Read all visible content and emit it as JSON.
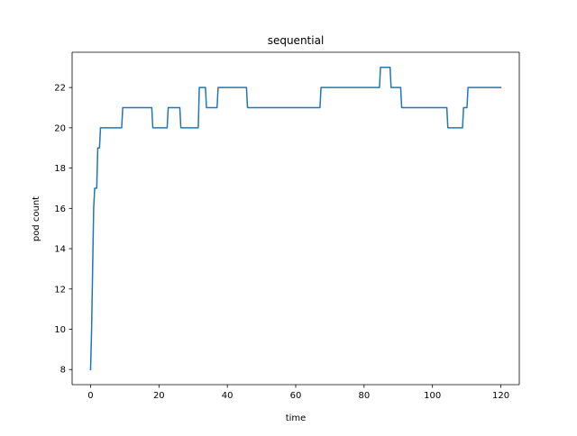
{
  "chart_data": {
    "type": "line",
    "title": "sequential",
    "xlabel": "time",
    "ylabel": "pod count",
    "xlim": [
      -5.4,
      125.4
    ],
    "ylim": [
      7.25,
      23.75
    ],
    "xticks": [
      0,
      20,
      40,
      60,
      80,
      100,
      120
    ],
    "yticks": [
      8,
      10,
      12,
      14,
      16,
      18,
      20,
      22
    ],
    "grid": false,
    "legend": "none",
    "series": [
      {
        "color": "#1f77b4",
        "step": true,
        "points": [
          [
            0.0,
            8
          ],
          [
            0.3,
            10
          ],
          [
            0.6,
            13
          ],
          [
            0.9,
            16
          ],
          [
            1.2,
            17
          ],
          [
            1.8,
            17
          ],
          [
            2.1,
            19
          ],
          [
            2.6,
            19
          ],
          [
            2.9,
            20
          ],
          [
            9.1,
            20
          ],
          [
            9.4,
            21
          ],
          [
            17.9,
            21
          ],
          [
            18.2,
            20
          ],
          [
            22.4,
            20
          ],
          [
            22.7,
            21
          ],
          [
            26.1,
            21
          ],
          [
            26.4,
            20
          ],
          [
            31.5,
            20
          ],
          [
            31.8,
            22
          ],
          [
            33.6,
            22
          ],
          [
            33.9,
            21
          ],
          [
            37.0,
            21
          ],
          [
            37.3,
            22
          ],
          [
            45.6,
            22
          ],
          [
            45.9,
            21
          ],
          [
            67.1,
            21
          ],
          [
            67.4,
            22
          ],
          [
            84.5,
            22
          ],
          [
            84.8,
            23
          ],
          [
            87.6,
            23
          ],
          [
            87.9,
            22
          ],
          [
            90.7,
            22
          ],
          [
            91.0,
            21
          ],
          [
            104.2,
            21
          ],
          [
            104.5,
            20
          ],
          [
            108.8,
            20
          ],
          [
            109.1,
            21
          ],
          [
            110.1,
            21
          ],
          [
            110.4,
            22
          ],
          [
            120.0,
            22
          ]
        ]
      }
    ]
  }
}
